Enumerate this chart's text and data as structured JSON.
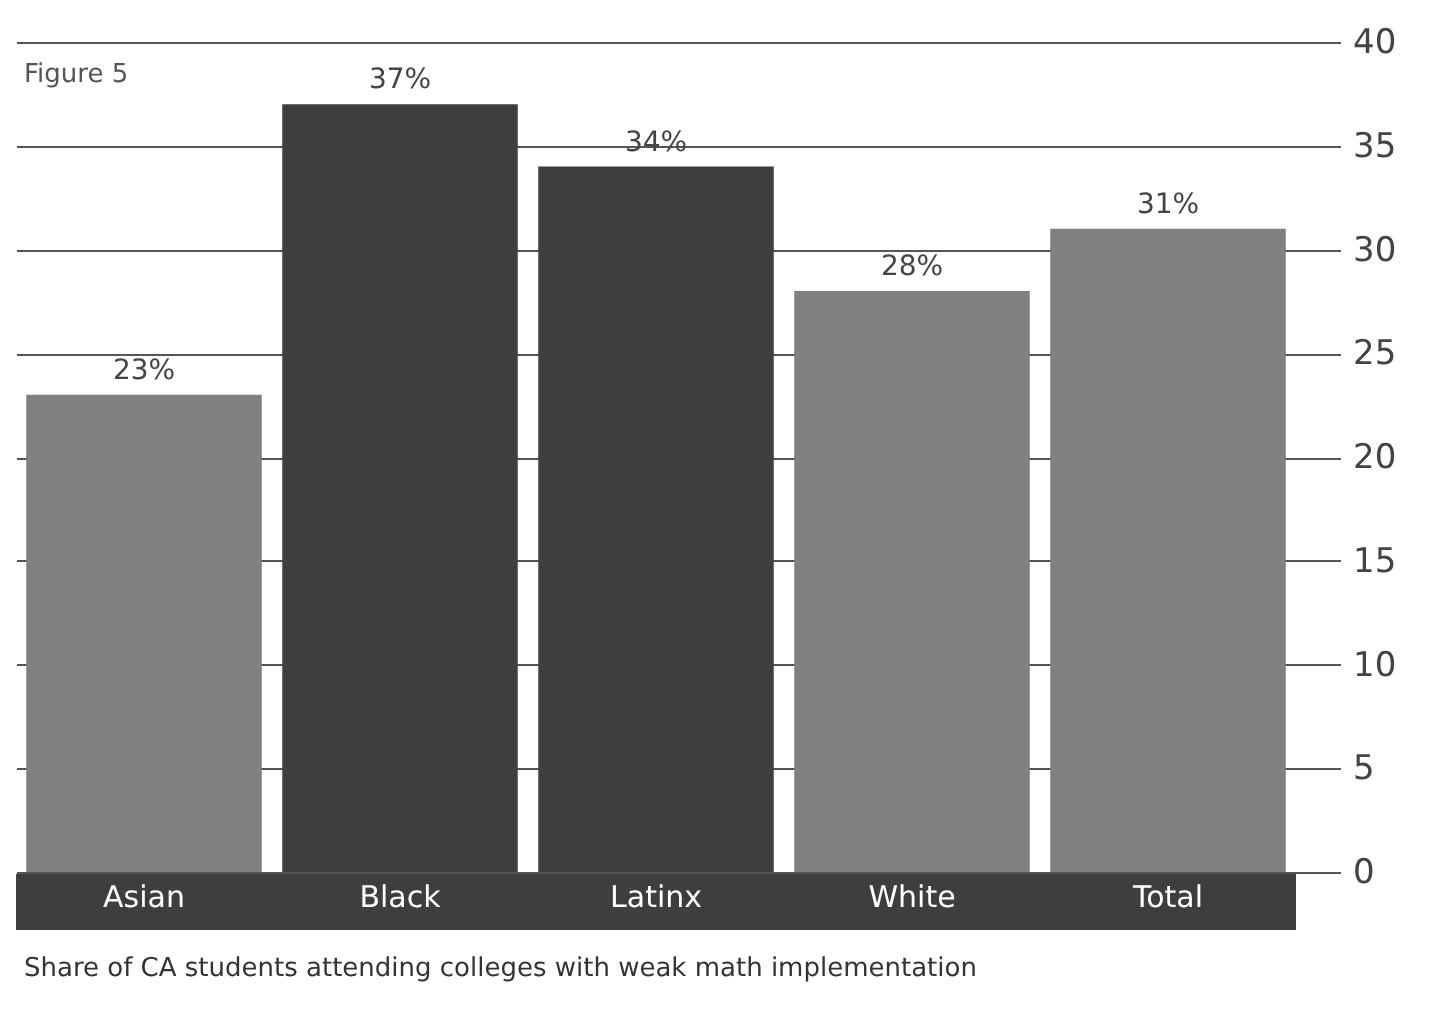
{
  "chart_data": {
    "type": "bar",
    "title": "Figure 5",
    "categories": [
      "Asian",
      "Black",
      "Latinx",
      "White",
      "Total"
    ],
    "values": [
      23,
      37,
      34,
      28,
      31
    ],
    "colors": [
      "#808083",
      "#3e3e40",
      "#3e3e40",
      "#808083",
      "#808083"
    ],
    "value_labels": [
      "23%",
      "37%",
      "34%",
      "28%",
      "31%"
    ],
    "ylim": [
      0,
      40
    ],
    "yticks": [
      0,
      5,
      10,
      15,
      20,
      25,
      30,
      35,
      40
    ],
    "grid": "y",
    "annotations": [
      "Share of CA students attending colleges with weak math implementation"
    ]
  }
}
